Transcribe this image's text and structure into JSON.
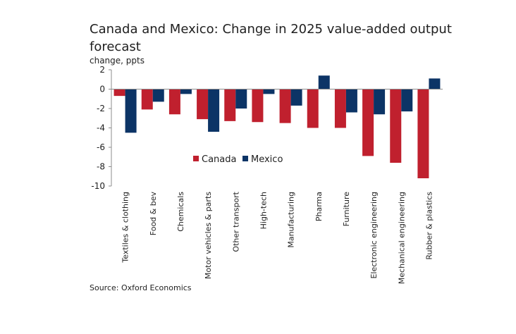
{
  "chart_data": {
    "type": "bar",
    "title": "Canada and Mexico: Change in 2025 value-added output forecast",
    "ylabel": "change, ppts",
    "xlabel": "",
    "ylim": [
      -10,
      2
    ],
    "yticks": [
      2,
      0,
      -2,
      -4,
      -6,
      -8,
      -10
    ],
    "grid": false,
    "legend_position": "center",
    "categories": [
      "Textiles & clothing",
      "Food & bev",
      "Chemicals",
      "Motor vehicles & parts",
      "Other transport",
      "High-tech",
      "Manufacturing",
      "Pharma",
      "Furniture",
      "Electronic engineering",
      "Mechanical engineering",
      "Rubber & plastics"
    ],
    "series": [
      {
        "name": "Canada",
        "color": "#c0202e",
        "values": [
          -0.7,
          -2.1,
          -2.6,
          -3.1,
          -3.3,
          -3.4,
          -3.5,
          -4.0,
          -4.0,
          -6.9,
          -7.6,
          -9.2
        ]
      },
      {
        "name": "Mexico",
        "color": "#0c3466",
        "values": [
          -4.5,
          -1.3,
          -0.5,
          -4.4,
          -2.0,
          -0.5,
          -1.7,
          1.4,
          -2.4,
          -2.6,
          -2.3,
          1.1
        ]
      }
    ]
  },
  "source": "Source: Oxford Economics"
}
